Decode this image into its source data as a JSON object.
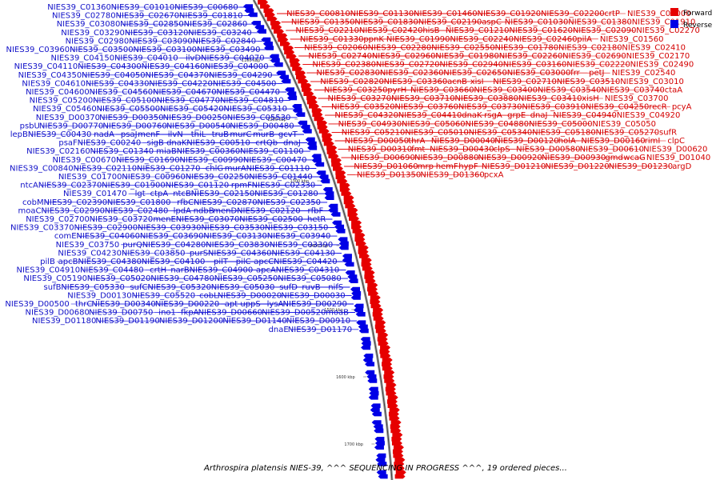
{
  "caption": "Arthrospira platensis NIES-39, ^^^ SEQUENCING IN PROGRESS ^^^, 19 ordered pieces...",
  "legend": {
    "forward_label": "Forward",
    "reverse_label": "Reverse",
    "forward_color": "#e60000",
    "reverse_color": "#0000e6"
  },
  "ruler_ticks": [
    "1100 kbp",
    "1200 kbp",
    "1300 kbp",
    "1400 kbp",
    "1500 kbp",
    "1600 kbp",
    "1700 kbp"
  ],
  "forward_genes": [
    "NIES39_C00810",
    "NIES39_C01130",
    "NIES39_C01460",
    "NIES39_C01920",
    "NIES39_C02200",
    "crtP",
    "NIES39_C01000",
    "NIES39_C01350",
    "NIES39_C01830",
    "NIES39_C02190",
    "aspC",
    "NIES39_C01030",
    "NIES39_C01380",
    "NIES39_C01910",
    "NIES39_C02210",
    "NIES39_C02420",
    "hisB",
    "NIES39_C01210",
    "NIES39_C01620",
    "NIES39_C02090",
    "NIES39_C02270",
    "NIES39_C01330",
    "ppnK",
    "NIES39_C01990",
    "NIES39_C02240",
    "NIES39_C02460",
    "pilA",
    "NIES39_C01560",
    "NIES39_C02060",
    "NIES39_C02280",
    "NIES39_C02550",
    "NIES39_C01780",
    "NIES39_C02180",
    "NIES39_C02410",
    "NIES39_C02740",
    "NIES39_C02960",
    "NIES39_C01980",
    "NIES39_C02260",
    "NIES39_C02690",
    "NIES39_C02170",
    "NIES39_C02380",
    "NIES39_C02720",
    "NIES39_C02940",
    "NIES39_C03160",
    "NIES39_C02220",
    "NIES39_C02490",
    "NIES39_C02830",
    "NIES39_C02360",
    "NIES39_C02650",
    "NIES39_C03000",
    "frr",
    "petJ",
    "NIES39_C02540",
    "NIES39_C02820",
    "NIES39_C03360",
    "acnB",
    "xisI",
    "NIES39_C02710",
    "NIES39_C03510",
    "NIES39_C03010",
    "NIES39_C03250",
    "pyrH",
    "NIES39_C03660",
    "NIES39_C03400",
    "NIES39_C03540",
    "NIES39_C03740",
    "ctaA",
    "NIES39_C03270",
    "NIES39_C03710",
    "NIES39_C03880",
    "NIES39_C03410",
    "xisH",
    "NIES39_C03700",
    "NIES39_C03520",
    "NIES39_C03760",
    "NIES39_C03730",
    "NIES39_C03910",
    "NIES39_C04250",
    "recR",
    "pcyA",
    "NIES39_C04320",
    "NIES39_C04410",
    "dnaK-rsgA",
    "grpE",
    "dnaJ",
    "NIES39_C04940",
    "NIES39_C04920",
    "NIES39_C04930",
    "NIES39_C05060",
    "NIES39_C04880",
    "NIES39_C05000",
    "NIES39_C05050",
    "NIES39_C05210",
    "NIES39_C05010",
    "NIES39_C05340",
    "NIES39_C05180",
    "NIES39_C05270",
    "sufR",
    "NIES39_D00050",
    "thrA",
    "NIES39_D00040",
    "NIES39_D00120",
    "holA",
    "NIES39_D00160",
    "rimI",
    "clpC",
    "NIES39_D00310",
    "fmt",
    "NIES39_D00430",
    "clpS",
    "NIES39_D00580",
    "NIES39_D00610",
    "NIES39_D00620",
    "NIES39_D00690",
    "NIES39_D00880",
    "NIES39_D00920",
    "NIES39_D00930",
    "gmd",
    "wcaG",
    "NIES39_D01040",
    "NIES39_D01060",
    "mrp",
    "hemF",
    "hypF",
    "NIES39_D01210",
    "NIES39_D01220",
    "NIES39_D01230",
    "argD",
    "NIES39_D01350",
    "NIES39_D01360",
    "pcxA"
  ],
  "reverse_genes": [
    "NIES39_C00680",
    "NIES39_C01010",
    "NIES39_C01360",
    "NIES39_C01810",
    "NIES39_C02670",
    "NIES39_C02780",
    "NIES39_C02860",
    "NIES39_C02850",
    "NIES39_C03080",
    "NIES39_C03240",
    "NIES39_C03120",
    "NIES39_C03290",
    "NIES39_C02840",
    "NIES39_C03090",
    "NIES39_C02980",
    "NIES39_C03490",
    "NIES39_C03100",
    "NIES39_C03500",
    "NIES39_C03960",
    "NIES39_C04070",
    "ilvD",
    "NIES39_C04010",
    "NIES39_C04150",
    "NIES39_C04000",
    "NIES39_C04160",
    "NIES39_C04300",
    "NIES39_C04110",
    "NIES39_C04290",
    "NIES39_C04370",
    "NIES39_C04050",
    "NIES39_C04350",
    "NIES39_C04500",
    "NIES39_C04220",
    "NIES39_C04330",
    "NIES39_C04610",
    "NIES39_C04470",
    "NIES39_C04670",
    "NIES39_C04560",
    "NIES39_C04600",
    "NIES39_C04810",
    "NIES39_C04770",
    "NIES39_C05100",
    "NIES39_C05200",
    "NIES39_C05310",
    "NIES39_C05420",
    "NIES39_C05500",
    "NIES39_C05460",
    "NIES39_C05530",
    "NIES39_D00250",
    "NIES39_D00350",
    "NIES39_D00370",
    "NIES39_D00480",
    "NIES39_D00540",
    "NIES39_D00760",
    "NIES39_D00770",
    "psbU",
    "gcvT",
    "murB",
    "murC",
    "truB",
    "thiL",
    "ilvN",
    "menF",
    "psaJ",
    "nadA",
    "NIES39_C00430",
    "lepB",
    "dnaJ",
    "crtQb",
    "NIES39_C00510",
    "dnaK",
    "sigB",
    "NIES39_C00240",
    "psaF",
    "NIES39_C01100",
    "NIES39_C00360",
    "miaB",
    "NIES39_C01340",
    "NIES39_C02160",
    "NIES39_C00470",
    "NIES39_C00990",
    "NIES39_C01690",
    "NIES39_C00670",
    "NIES39_C01110",
    "murA",
    "chlG",
    "NIES39_C01270",
    "NIES39_C02110",
    "NIES39_C00840",
    "NIES39_C01440",
    "NIES39_C02250",
    "NIES39_C00960",
    "NIES39_C01700",
    "NIES39_C02330",
    "rpmF",
    "NIES39_C01120",
    "NIES39_C01900",
    "NIES39_C02370",
    "ntcA",
    "NIES39_C01280",
    "NIES39_C02150",
    "ntcB",
    "ctpA",
    "lgt",
    "NIES39_C01470",
    "NIES39_C02350",
    "NIES39_C02870",
    "rfbC",
    "NIES39_C01800",
    "NIES39_C02390",
    "cobM",
    "rfbF",
    "NIES39_C02120",
    "menD",
    "ndbB",
    "lpdA",
    "NIES39_C02480",
    "NIES39_C02990",
    "moaC",
    "hetR",
    "NIES39_C02500",
    "NIES39_C03070",
    "menE",
    "NIES39_C03720",
    "NIES39_C02700",
    "NIES39_C03150",
    "NIES39_C03530",
    "NIES39_C03930",
    "NIES39_C02900",
    "NIES39_C03370",
    "NIES39_C03940",
    "NIES39_C03130",
    "NIES39_C03690",
    "NIES39_C04060",
    "comE",
    "NIES39_C03390",
    "NIES39_C03830",
    "NIES39_C04280",
    "purQ",
    "NIES39_C03750",
    "NIES39_C04130",
    "NIES39_C04360",
    "purS",
    "NIES39_C03850",
    "NIES39_C04230",
    "NIES39_C04420",
    "apcC",
    "pilC",
    "pilT",
    "NIES39_C04100",
    "NIES39_C04380",
    "apcB",
    "pilB",
    "NIES39_C04310",
    "apcA",
    "NIES39_C04900",
    "narB",
    "crtH",
    "NIES39_C04480",
    "NIES39_C04910",
    "NIES39_C05080",
    "NIES39_C05250",
    "NIES39_C04780",
    "NIES39_C05020",
    "NIES39_C05190",
    "nifS",
    "ruvB",
    "sufD",
    "NIES39_C05030",
    "NIES39_C05320",
    "sufC",
    "NIES39_C05330",
    "sufB",
    "NIES39_D00030",
    "NIES39_D00020",
    "cobL",
    "NIES39_C05520",
    "NIES39_D00130",
    "NIES39_D00290",
    "lysA",
    "uppS",
    "apt",
    "NIES39_D00220",
    "NIES39_D00340",
    "thrC",
    "NIES39_D00500",
    "moaB",
    "NIES39_D00520",
    "NIES39_D00660",
    "fkpA",
    "ino1",
    "NIES39_D00750",
    "NIES39_D00680",
    "NIES39_D00910",
    "NIES39_D01140",
    "NIES39_D01200",
    "NIES39_D01190",
    "NIES39_D01180",
    "NIES39_D01170",
    "dnaE"
  ]
}
